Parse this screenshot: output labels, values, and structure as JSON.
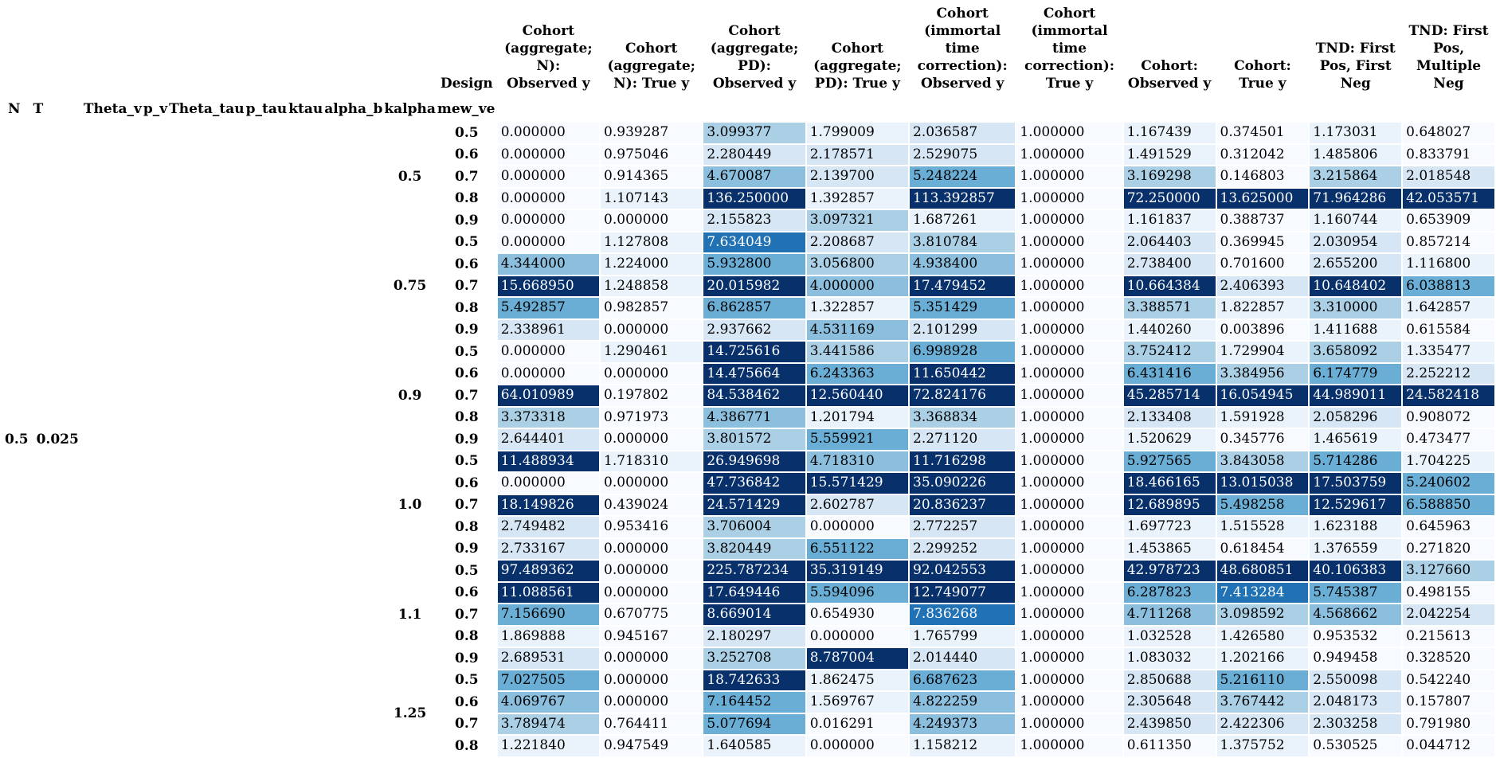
{
  "index_names": [
    "N",
    "T",
    "Theta_v",
    "p_v",
    "Theta_tau",
    "p_tau",
    "ktau",
    "alpha_b",
    "kalpha",
    "mew_ve"
  ],
  "columns": [
    "Design",
    "Cohort (aggregate; N): Observed y",
    "Cohort (aggregate; N): True y",
    "Cohort (aggregate; PD): Observed y",
    "Cohort (aggregate; PD): True y",
    "Cohort (immortal time correction): Observed y",
    "Cohort (immortal time correction): True y",
    "Cohort: Observed y",
    "Cohort: True y",
    "TND: First Pos, First Neg",
    "TND: First Pos, Multiple Neg"
  ],
  "outer_index": {
    "a": "0.5",
    "b": "0.025"
  },
  "groups": [
    {
      "label": "0.5",
      "rows": [
        [
          "0.5",
          "0.000000",
          "0.939287",
          "3.099377",
          "1.799009",
          "2.036587",
          "1.000000",
          "1.167439",
          "0.374501",
          "1.173031",
          "0.648027"
        ],
        [
          "0.6",
          "0.000000",
          "0.975046",
          "2.280449",
          "2.178571",
          "2.529075",
          "1.000000",
          "1.491529",
          "0.312042",
          "1.485806",
          "0.833791"
        ],
        [
          "0.7",
          "0.000000",
          "0.914365",
          "4.670087",
          "2.139700",
          "5.248224",
          "1.000000",
          "3.169298",
          "0.146803",
          "3.215864",
          "2.018548"
        ],
        [
          "0.8",
          "0.000000",
          "1.107143",
          "136.250000",
          "1.392857",
          "113.392857",
          "1.000000",
          "72.250000",
          "13.625000",
          "71.964286",
          "42.053571"
        ],
        [
          "0.9",
          "0.000000",
          "0.000000",
          "2.155823",
          "3.097321",
          "1.687261",
          "1.000000",
          "1.161837",
          "0.388737",
          "1.160744",
          "0.653909"
        ]
      ]
    },
    {
      "label": "0.75",
      "rows": [
        [
          "0.5",
          "0.000000",
          "1.127808",
          "7.634049",
          "2.208687",
          "3.810784",
          "1.000000",
          "2.064403",
          "0.369945",
          "2.030954",
          "0.857214"
        ],
        [
          "0.6",
          "4.344000",
          "1.224000",
          "5.932800",
          "3.056800",
          "4.938400",
          "1.000000",
          "2.738400",
          "0.701600",
          "2.655200",
          "1.116800"
        ],
        [
          "0.7",
          "15.668950",
          "1.248858",
          "20.015982",
          "4.000000",
          "17.479452",
          "1.000000",
          "10.664384",
          "2.406393",
          "10.648402",
          "6.038813"
        ],
        [
          "0.8",
          "5.492857",
          "0.982857",
          "6.862857",
          "1.322857",
          "5.351429",
          "1.000000",
          "3.388571",
          "1.822857",
          "3.310000",
          "1.642857"
        ],
        [
          "0.9",
          "2.338961",
          "0.000000",
          "2.937662",
          "4.531169",
          "2.101299",
          "1.000000",
          "1.440260",
          "0.003896",
          "1.411688",
          "0.615584"
        ]
      ]
    },
    {
      "label": "0.9",
      "rows": [
        [
          "0.5",
          "0.000000",
          "1.290461",
          "14.725616",
          "3.441586",
          "6.998928",
          "1.000000",
          "3.752412",
          "1.729904",
          "3.658092",
          "1.335477"
        ],
        [
          "0.6",
          "0.000000",
          "0.000000",
          "14.475664",
          "6.243363",
          "11.650442",
          "1.000000",
          "6.431416",
          "3.384956",
          "6.174779",
          "2.252212"
        ],
        [
          "0.7",
          "64.010989",
          "0.197802",
          "84.538462",
          "12.560440",
          "72.824176",
          "1.000000",
          "45.285714",
          "16.054945",
          "44.989011",
          "24.582418"
        ],
        [
          "0.8",
          "3.373318",
          "0.971973",
          "4.386771",
          "1.201794",
          "3.368834",
          "1.000000",
          "2.133408",
          "1.591928",
          "2.058296",
          "0.908072"
        ],
        [
          "0.9",
          "2.644401",
          "0.000000",
          "3.801572",
          "5.559921",
          "2.271120",
          "1.000000",
          "1.520629",
          "0.345776",
          "1.465619",
          "0.473477"
        ]
      ]
    },
    {
      "label": "1.0",
      "rows": [
        [
          "0.5",
          "11.488934",
          "1.718310",
          "26.949698",
          "4.718310",
          "11.716298",
          "1.000000",
          "5.927565",
          "3.843058",
          "5.714286",
          "1.704225"
        ],
        [
          "0.6",
          "0.000000",
          "0.000000",
          "47.736842",
          "15.571429",
          "35.090226",
          "1.000000",
          "18.466165",
          "13.015038",
          "17.503759",
          "5.240602"
        ],
        [
          "0.7",
          "18.149826",
          "0.439024",
          "24.571429",
          "2.602787",
          "20.836237",
          "1.000000",
          "12.689895",
          "5.498258",
          "12.529617",
          "6.588850"
        ],
        [
          "0.8",
          "2.749482",
          "0.953416",
          "3.706004",
          "0.000000",
          "2.772257",
          "1.000000",
          "1.697723",
          "1.515528",
          "1.623188",
          "0.645963"
        ],
        [
          "0.9",
          "2.733167",
          "0.000000",
          "3.820449",
          "6.551122",
          "2.299252",
          "1.000000",
          "1.453865",
          "0.618454",
          "1.376559",
          "0.271820"
        ]
      ]
    },
    {
      "label": "1.1",
      "rows": [
        [
          "0.5",
          "97.489362",
          "0.000000",
          "225.787234",
          "35.319149",
          "92.042553",
          "1.000000",
          "42.978723",
          "48.680851",
          "40.106383",
          "3.127660"
        ],
        [
          "0.6",
          "11.088561",
          "0.000000",
          "17.649446",
          "5.594096",
          "12.749077",
          "1.000000",
          "6.287823",
          "7.413284",
          "5.745387",
          "0.498155"
        ],
        [
          "0.7",
          "7.156690",
          "0.670775",
          "8.669014",
          "0.654930",
          "7.836268",
          "1.000000",
          "4.711268",
          "3.098592",
          "4.568662",
          "2.042254"
        ],
        [
          "0.8",
          "1.869888",
          "0.945167",
          "2.180297",
          "0.000000",
          "1.765799",
          "1.000000",
          "1.032528",
          "1.426580",
          "0.953532",
          "0.215613"
        ],
        [
          "0.9",
          "2.689531",
          "0.000000",
          "3.252708",
          "8.787004",
          "2.014440",
          "1.000000",
          "1.083032",
          "1.202166",
          "0.949458",
          "0.328520"
        ]
      ]
    },
    {
      "label": "1.25",
      "rows": [
        [
          "0.5",
          "7.027505",
          "0.000000",
          "18.742633",
          "1.862475",
          "6.687623",
          "1.000000",
          "2.850688",
          "5.216110",
          "2.550098",
          "0.542240"
        ],
        [
          "0.6",
          "4.069767",
          "0.000000",
          "7.164452",
          "1.569767",
          "4.822259",
          "1.000000",
          "2.305648",
          "3.767442",
          "2.048173",
          "0.157807"
        ],
        [
          "0.7",
          "3.789474",
          "0.764411",
          "5.077694",
          "0.016291",
          "4.249373",
          "1.000000",
          "2.439850",
          "2.422306",
          "2.303258",
          "0.791980"
        ],
        [
          "0.8",
          "1.221840",
          "0.947549",
          "1.640585",
          "0.000000",
          "1.158212",
          "1.000000",
          "0.611350",
          "1.375752",
          "0.530525",
          "0.044712"
        ]
      ]
    }
  ],
  "colors": {
    "white": "#f7fbff",
    "lightest": "#eaf3fb",
    "light": "#d6e6f4",
    "mid": "#abd0e6",
    "midstrong": "#8cbfde",
    "strong": "#6aaed6",
    "deep": "#2171b5",
    "darkest": "#08306b"
  }
}
